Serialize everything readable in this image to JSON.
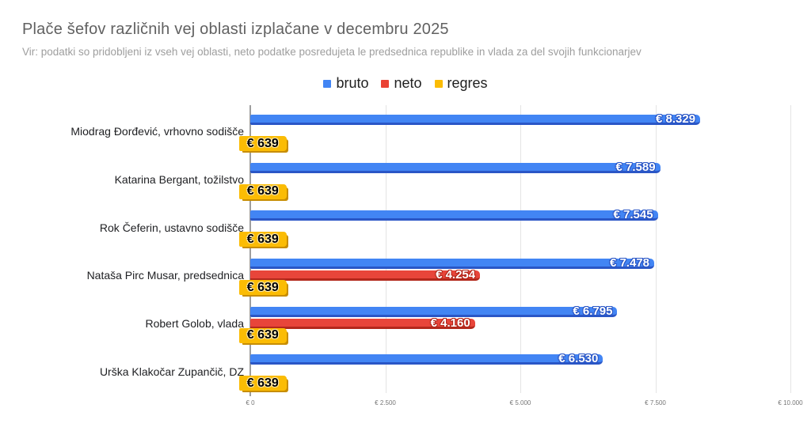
{
  "title": "Plače šefov različnih vej oblasti izplačane v decembru 2025",
  "subtitle": "Vir: podatki so pridobljeni iz vseh vej oblasti, neto podatke posredujeta le predsednica republike in vlada za del svojih funkcionarjev",
  "legend": [
    {
      "label": "bruto",
      "color": "#4285f4"
    },
    {
      "label": "neto",
      "color": "#ea4335"
    },
    {
      "label": "regres",
      "color": "#fbbc04"
    }
  ],
  "chart_data": {
    "type": "bar",
    "orientation": "horizontal",
    "title": "Plače šefov različnih vej oblasti izplačane v decembru 2025",
    "subtitle": "Vir: podatki so pridobljeni iz vseh vej oblasti, neto podatke posredujeta le predsednica republike in vlada za del svojih funkcionarjev",
    "categories": [
      "Miodrag Đorđević, vrhovno sodišče",
      "Katarina Bergant, tožilstvo",
      "Rok Čeferin, ustavno sodišče",
      "Nataša Pirc Musar, predsednica",
      "Robert Golob, vlada",
      "Urška Klakočar Zupančič, DZ"
    ],
    "series": [
      {
        "name": "bruto",
        "color": "#4285f4",
        "dark": "#2a56c6",
        "values": [
          8329,
          7589,
          7545,
          7478,
          6795,
          6530
        ]
      },
      {
        "name": "neto",
        "color": "#e8453a",
        "dark": "#b3281c",
        "values": [
          null,
          null,
          null,
          4254,
          4160,
          null
        ]
      },
      {
        "name": "regres",
        "color": "#fbbc04",
        "dark": "#c78d00",
        "values": [
          639,
          639,
          639,
          639,
          639,
          639
        ]
      }
    ],
    "value_prefix": "€ ",
    "value_labels": {
      "bruto": [
        "€ 8.329",
        "€ 7.589",
        "€ 7.545",
        "€ 7.478",
        "€ 6.795",
        "€ 6.530"
      ],
      "neto": [
        null,
        null,
        null,
        "€ 4.254",
        "€ 4.160",
        null
      ],
      "regres": [
        "€ 639",
        "€ 639",
        "€ 639",
        "€ 639",
        "€ 639",
        "€ 639"
      ]
    },
    "x_ticks": [
      "€ 0",
      "€ 2.500",
      "€ 5.000",
      "€ 7.500",
      "€ 10.000"
    ],
    "xlabel": "",
    "ylabel": "",
    "xlim": [
      0,
      10000
    ],
    "grid": true,
    "legend_position": "top-center",
    "background": "#ffffff"
  }
}
